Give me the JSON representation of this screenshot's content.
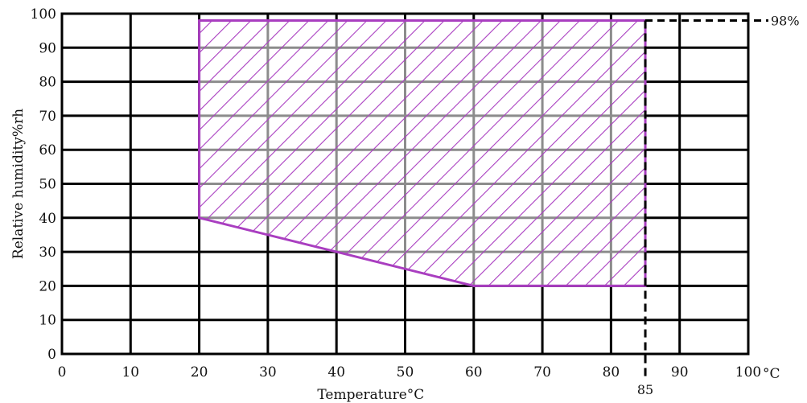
{
  "chart_data": {
    "type": "area",
    "xlabel": "Temperature°C",
    "ylabel": "Relative  humidity%rh",
    "x_unit": "°C",
    "xlim": [
      0,
      100
    ],
    "ylim": [
      0,
      100
    ],
    "x_ticks": [
      "0",
      "10",
      "20",
      "30",
      "40",
      "50",
      "60",
      "70",
      "80",
      "90",
      "100"
    ],
    "y_ticks": [
      "0",
      "10",
      "20",
      "30",
      "40",
      "50",
      "60",
      "70",
      "80",
      "90",
      "100"
    ],
    "grid": true,
    "region": {
      "fill": "hatched",
      "color": "#a93ec0",
      "points": [
        {
          "x": 20,
          "y": 40
        },
        {
          "x": 20,
          "y": 98
        },
        {
          "x": 85,
          "y": 98
        },
        {
          "x": 85,
          "y": 20
        },
        {
          "x": 60,
          "y": 20
        },
        {
          "x": 40,
          "y": 30
        }
      ]
    },
    "annotations": [
      {
        "label": "98%",
        "x": 85,
        "y": 98,
        "kind": "horizontal-dashed"
      },
      {
        "label": "85",
        "x": 85,
        "y": 0,
        "kind": "vertical-dashed"
      }
    ]
  }
}
